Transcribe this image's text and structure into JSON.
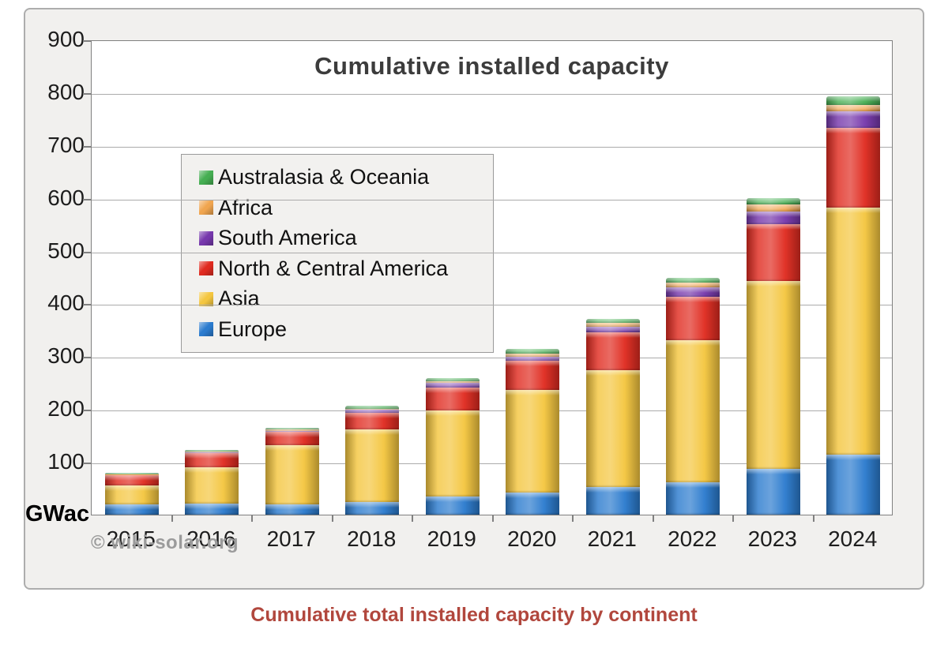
{
  "caption": "Cumulative total installed capacity by continent",
  "attribution": "© wiki-solar.org",
  "colors": {
    "panel_background": "#f1f0ee",
    "plot_background": "#ffffff",
    "gridline": "#ababab",
    "axis": "#808080",
    "title_text": "#3c3c3c",
    "caption_text": "#b1473d",
    "attribution_text": "#9b9b9b"
  },
  "chart_data": {
    "type": "bar",
    "stacked": true,
    "title": "Cumulative installed capacity",
    "unit_label": "GWac",
    "ylim": [
      0,
      900
    ],
    "ytick_interval": 100,
    "grid": true,
    "legend_position": "upper-left",
    "categories": [
      "2015",
      "2016",
      "2017",
      "2018",
      "2019",
      "2020",
      "2021",
      "2022",
      "2023",
      "2024"
    ],
    "series": [
      {
        "name": "Europe",
        "color": "#2b7bce",
        "values": [
          19,
          21,
          20,
          24,
          34,
          42,
          52,
          62,
          86,
          113
        ]
      },
      {
        "name": "Asia",
        "color": "#f4c63f",
        "values": [
          37,
          68,
          111,
          137,
          163,
          194,
          222,
          269,
          356,
          469
        ]
      },
      {
        "name": "North & Central America",
        "color": "#e02b20",
        "values": [
          19,
          28,
          26,
          32,
          44,
          55,
          72,
          81,
          108,
          151
        ]
      },
      {
        "name": "South America",
        "color": "#7638ac",
        "values": [
          1,
          1,
          2,
          6,
          8,
          8,
          10,
          18,
          24,
          31
        ]
      },
      {
        "name": "Africa",
        "color": "#f0a54f",
        "values": [
          1,
          2,
          2,
          2,
          3,
          6,
          7,
          9,
          13,
          12
        ]
      },
      {
        "name": "Australasia & Oceania",
        "color": "#45ae52",
        "values": [
          2,
          3,
          4,
          5,
          6,
          9,
          8,
          9,
          13,
          17
        ]
      }
    ],
    "legend_order": [
      "Australasia & Oceania",
      "Africa",
      "South America",
      "North & Central America",
      "Asia",
      "Europe"
    ]
  }
}
